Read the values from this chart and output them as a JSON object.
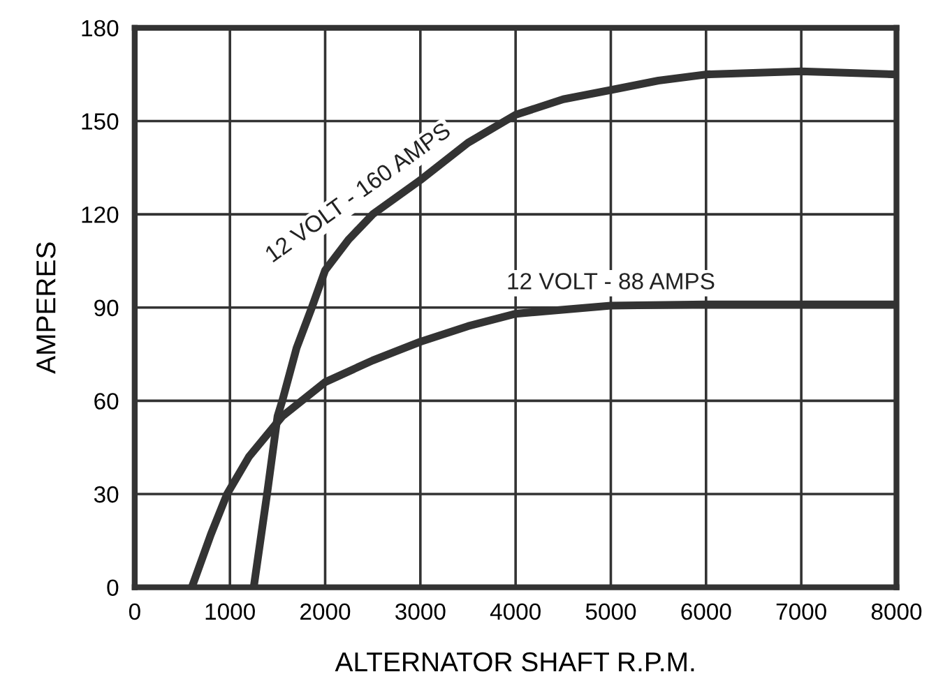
{
  "chart_data": {
    "type": "line",
    "xlabel": "ALTERNATOR SHAFT R.P.M.",
    "ylabel": "AMPERES",
    "xlim": [
      0,
      8000
    ],
    "xticks": [
      0,
      1000,
      2000,
      3000,
      4000,
      5000,
      6000,
      7000,
      8000
    ],
    "ylim": [
      0,
      180
    ],
    "yticks": [
      0,
      30,
      60,
      90,
      120,
      150,
      180
    ],
    "grid": true,
    "legend": false,
    "marker": "none",
    "line_style": "solid",
    "series": [
      {
        "name": "12 VOLT - 160 AMPS",
        "color": "#333333",
        "x": [
          1250,
          1390,
          1500,
          1550,
          1700,
          1860,
          2000,
          2250,
          2500,
          3000,
          3500,
          4000,
          4500,
          5000,
          5500,
          6000,
          7000,
          8000
        ],
        "values": [
          0,
          30,
          55,
          60,
          77,
          90,
          102,
          112,
          120,
          131,
          143,
          152,
          157,
          160,
          163,
          165,
          166,
          165
        ]
      },
      {
        "name": "12 VOLT - 88 AMPS",
        "color": "#333333",
        "x": [
          600,
          800,
          970,
          1200,
          1550,
          2000,
          2500,
          3000,
          3500,
          4000,
          5000,
          6000,
          7000,
          8000
        ],
        "values": [
          0,
          17,
          30,
          42,
          55,
          66,
          73,
          79,
          84,
          88,
          90.6,
          91,
          91,
          91
        ]
      }
    ]
  }
}
